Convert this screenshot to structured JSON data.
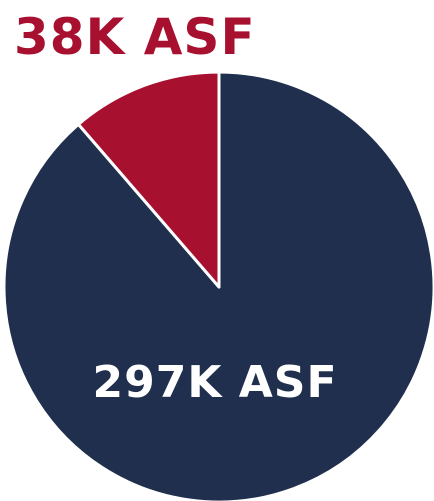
{
  "chart_data": {
    "type": "pie",
    "values": [
      297,
      38
    ],
    "value_labels": [
      "297K ASF",
      "38K ASF"
    ],
    "colors": [
      "#1f2f4d",
      "#a8102f"
    ]
  }
}
